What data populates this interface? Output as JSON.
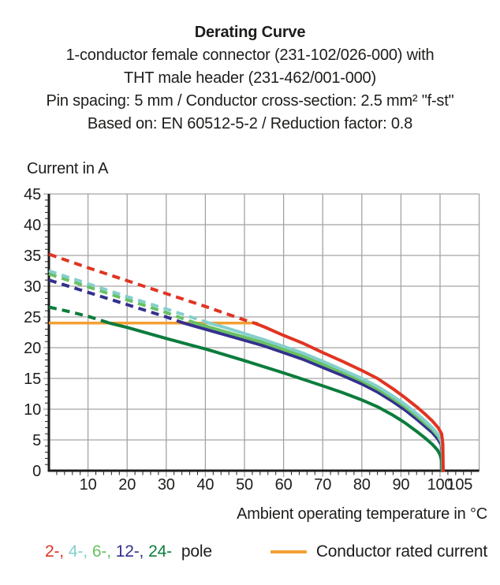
{
  "header": {
    "title": "Derating Curve",
    "line2": "1-conductor female connector (231-102/026-000) with",
    "line3": "THT male header (231-462/001-000)",
    "line4": "Pin spacing: 5 mm / Conductor cross-section: 2.5 mm² \"f-st\"",
    "line5": "Based on: EN 60512-5-2 / Reduction factor: 0.8"
  },
  "chart_data": {
    "type": "line",
    "title": "Derating Curve",
    "ylabel": "Current in A",
    "xlabel": "Ambient operating temperature in °C",
    "xlim": [
      0,
      110
    ],
    "ylim": [
      0,
      45
    ],
    "x_major_ticks": [
      10,
      20,
      30,
      40,
      50,
      60,
      70,
      80,
      90,
      100,
      105
    ],
    "x_gridlines": [
      10,
      20,
      30,
      40,
      50,
      60,
      70,
      80,
      90,
      100,
      110
    ],
    "x_minor_step": 2,
    "y_major_ticks": [
      0,
      5,
      10,
      15,
      20,
      25,
      30,
      35,
      40,
      45
    ],
    "y_minor_step": 1,
    "grid": true,
    "colors": {
      "grid": "#a3a3a3",
      "axis": "#1d1d1b",
      "text": "#1d1d1b"
    },
    "rated_current": {
      "label": "Conductor rated current",
      "value": 24,
      "x_start": 0,
      "x_end": 53.5,
      "color": "#f49f33"
    },
    "series": [
      {
        "name": "2-pole",
        "color": "#e13422",
        "solid_from_x": 52.5,
        "points": [
          [
            0,
            35.2
          ],
          [
            10,
            33.0
          ],
          [
            20,
            30.9
          ],
          [
            30,
            28.8
          ],
          [
            40,
            26.7
          ],
          [
            50,
            24.5
          ],
          [
            52.5,
            24.0
          ],
          [
            55,
            23.4
          ],
          [
            60,
            22.0
          ],
          [
            65,
            20.7
          ],
          [
            70,
            19.2
          ],
          [
            75,
            17.8
          ],
          [
            80,
            16.3
          ],
          [
            84,
            15.0
          ],
          [
            88,
            13.3
          ],
          [
            91,
            11.9
          ],
          [
            94,
            10.4
          ],
          [
            96,
            9.3
          ],
          [
            98,
            8.1
          ],
          [
            99.5,
            7.0
          ],
          [
            100.4,
            6.0
          ],
          [
            100.7,
            4.4
          ],
          [
            100.8,
            0
          ]
        ]
      },
      {
        "name": "4-pole",
        "color": "#85cfcb",
        "solid_from_x": 41,
        "points": [
          [
            0,
            32.5
          ],
          [
            10,
            30.4
          ],
          [
            20,
            28.3
          ],
          [
            30,
            26.3
          ],
          [
            41,
            24.0
          ],
          [
            45,
            23.3
          ],
          [
            50,
            22.3
          ],
          [
            55,
            21.3
          ],
          [
            60,
            20.2
          ],
          [
            65,
            19.1
          ],
          [
            70,
            17.8
          ],
          [
            75,
            16.4
          ],
          [
            80,
            15.0
          ],
          [
            84,
            13.7
          ],
          [
            88,
            12.1
          ],
          [
            91,
            10.8
          ],
          [
            94,
            9.3
          ],
          [
            96,
            8.2
          ],
          [
            98,
            7.0
          ],
          [
            99.5,
            5.9
          ],
          [
            100.3,
            5.0
          ],
          [
            100.6,
            3.6
          ],
          [
            100.7,
            0
          ]
        ]
      },
      {
        "name": "6-pole",
        "color": "#68c162",
        "solid_from_x": 37.5,
        "points": [
          [
            0,
            32.0
          ],
          [
            10,
            29.9
          ],
          [
            20,
            27.8
          ],
          [
            30,
            25.7
          ],
          [
            37.5,
            24.0
          ],
          [
            45,
            22.6
          ],
          [
            50,
            21.7
          ],
          [
            55,
            20.8
          ],
          [
            60,
            19.7
          ],
          [
            65,
            18.6
          ],
          [
            70,
            17.3
          ],
          [
            75,
            16.0
          ],
          [
            80,
            14.6
          ],
          [
            84,
            13.3
          ],
          [
            88,
            11.7
          ],
          [
            91,
            10.4
          ],
          [
            94,
            8.9
          ],
          [
            96,
            7.8
          ],
          [
            98,
            6.7
          ],
          [
            99.5,
            5.6
          ],
          [
            100.3,
            4.7
          ],
          [
            100.6,
            3.3
          ],
          [
            100.7,
            0
          ]
        ]
      },
      {
        "name": "12-pole",
        "color": "#34308e",
        "solid_from_x": 34.5,
        "points": [
          [
            0,
            31.0
          ],
          [
            10,
            29.0
          ],
          [
            20,
            27.0
          ],
          [
            30,
            25.0
          ],
          [
            34.5,
            24.0
          ],
          [
            40,
            23.0
          ],
          [
            45,
            22.1
          ],
          [
            50,
            21.2
          ],
          [
            55,
            20.3
          ],
          [
            60,
            19.2
          ],
          [
            65,
            18.1
          ],
          [
            70,
            16.8
          ],
          [
            75,
            15.5
          ],
          [
            80,
            14.1
          ],
          [
            84,
            12.8
          ],
          [
            88,
            11.2
          ],
          [
            91,
            9.9
          ],
          [
            94,
            8.4
          ],
          [
            96,
            7.3
          ],
          [
            98,
            6.2
          ],
          [
            99.5,
            5.1
          ],
          [
            100.3,
            4.2
          ],
          [
            100.6,
            2.9
          ],
          [
            100.7,
            0
          ]
        ]
      },
      {
        "name": "24-pole",
        "color": "#0c7c3c",
        "solid_from_x": 15.5,
        "points": [
          [
            0,
            26.6
          ],
          [
            5,
            25.9
          ],
          [
            10,
            25.1
          ],
          [
            15.5,
            24.0
          ],
          [
            20,
            23.3
          ],
          [
            30,
            21.5
          ],
          [
            40,
            19.8
          ],
          [
            50,
            17.9
          ],
          [
            60,
            15.9
          ],
          [
            70,
            13.8
          ],
          [
            75,
            12.7
          ],
          [
            80,
            11.5
          ],
          [
            84,
            10.4
          ],
          [
            88,
            9.0
          ],
          [
            91,
            7.8
          ],
          [
            94,
            6.4
          ],
          [
            96,
            5.4
          ],
          [
            98,
            4.3
          ],
          [
            99.3,
            3.4
          ],
          [
            100,
            2.6
          ],
          [
            100.4,
            1.6
          ],
          [
            100.5,
            0
          ]
        ]
      }
    ]
  },
  "legend": {
    "poles": [
      {
        "label": "2-,",
        "color": "#e13422"
      },
      {
        "label": "4-,",
        "color": "#85cfcb"
      },
      {
        "label": "6-,",
        "color": "#68c162"
      },
      {
        "label": "12-,",
        "color": "#34308e"
      },
      {
        "label": "24-",
        "color": "#0c7c3c"
      }
    ],
    "poles_suffix": "pole"
  }
}
